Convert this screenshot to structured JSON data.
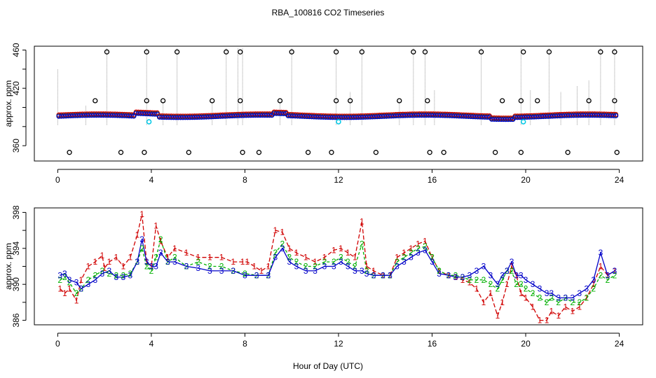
{
  "chart_data": {
    "title": "RBA_100816  CO2 Timeseries",
    "xlabel": "Hour of Day (UTC)",
    "colors": {
      "black": "#000000",
      "red": "#d00000",
      "green": "#00b000",
      "blue": "#0000c8",
      "cyan": "#00c8e6",
      "gray": "#9a9a9a"
    },
    "panels": [
      {
        "type": "scatter",
        "ylabel": "approx. ppm",
        "xlim": [
          -1,
          25
        ],
        "ylim": [
          344,
          464
        ],
        "xticks": [
          0,
          4,
          8,
          12,
          16,
          20,
          24
        ],
        "yticks": [
          360,
          380,
          400,
          420,
          440,
          460
        ],
        "ytick_labels": [
          "360",
          "",
          "",
          "420",
          "",
          "460"
        ],
        "outliers_high": [
          2.1,
          3.8,
          5.1,
          7.2,
          7.8,
          10.0,
          11.9,
          13.0,
          15.2,
          15.7,
          18.1,
          19.9,
          21.0,
          23.2,
          23.8
        ],
        "outliers_mid": [
          1.6,
          3.8,
          4.5,
          6.6,
          7.8,
          9.5,
          11.9,
          12.5,
          14.6,
          15.8,
          19.0,
          19.8,
          20.5,
          22.7,
          23.8
        ],
        "outliers_low": [
          0.5,
          2.7,
          3.7,
          5.6,
          7.9,
          8.6,
          10.7,
          11.7,
          13.6,
          15.9,
          16.5,
          18.7,
          19.8,
          21.8,
          23.9
        ],
        "cyan_points": [
          [
            3.9,
            385
          ],
          [
            12.0,
            385
          ],
          [
            19.9,
            385
          ]
        ],
        "sticks": [
          [
            0.0,
            440
          ],
          [
            1.2,
            402
          ],
          [
            2.1,
            462
          ],
          [
            3.8,
            462
          ],
          [
            4.5,
            406
          ],
          [
            5.1,
            462
          ],
          [
            6.6,
            406
          ],
          [
            7.2,
            462
          ],
          [
            7.7,
            462
          ],
          [
            7.9,
            462
          ],
          [
            9.5,
            406
          ],
          [
            10.0,
            462
          ],
          [
            11.9,
            462
          ],
          [
            12.5,
            416
          ],
          [
            13.0,
            462
          ],
          [
            14.6,
            406
          ],
          [
            15.2,
            462
          ],
          [
            15.7,
            462
          ],
          [
            16.1,
            418
          ],
          [
            18.1,
            462
          ],
          [
            19.8,
            462
          ],
          [
            20.2,
            418
          ],
          [
            21.0,
            462
          ],
          [
            21.5,
            416
          ],
          [
            22.2,
            422
          ],
          [
            22.7,
            428
          ],
          [
            23.2,
            462
          ],
          [
            23.8,
            462
          ]
        ]
      },
      {
        "type": "line",
        "ylabel": "approx. ppm",
        "xlim": [
          -1,
          25
        ],
        "ylim": [
          385.5,
          398.5
        ],
        "xticks": [
          0,
          4,
          8,
          12,
          16,
          20,
          24
        ],
        "yticks": [
          386,
          388,
          390,
          392,
          394,
          396,
          398
        ],
        "ytick_labels": [
          "386",
          "",
          "390",
          "",
          "394",
          "",
          "398"
        ],
        "series": [
          {
            "name": "1",
            "color": "red",
            "x": [
              0.1,
              0.3,
              0.5,
              0.8,
              1.0,
              1.3,
              1.6,
              1.9,
              2.0,
              2.2,
              2.5,
              2.8,
              3.1,
              3.4,
              3.6,
              3.8,
              4.0,
              4.2,
              4.4,
              4.7,
              5.0,
              5.5,
              6.0,
              6.5,
              7.0,
              7.5,
              7.9,
              8.1,
              8.4,
              8.7,
              9.0,
              9.3,
              9.6,
              9.9,
              10.2,
              10.6,
              11.0,
              11.4,
              11.8,
              12.1,
              12.4,
              12.7,
              13.0,
              13.2,
              13.5,
              13.9,
              14.2,
              14.5,
              14.8,
              15.1,
              15.4,
              15.7,
              16.0,
              16.3,
              16.7,
              17.0,
              17.3,
              17.6,
              17.9,
              18.2,
              18.5,
              18.8,
              19.0,
              19.2,
              19.4,
              19.6,
              19.8,
              20.0,
              20.3,
              20.6,
              20.9,
              21.1,
              21.4,
              21.7,
              22.0,
              22.3,
              22.6,
              22.9,
              23.2,
              23.5,
              23.8
            ],
            "y": [
              389.5,
              389.0,
              389.5,
              388.2,
              390.5,
              392.0,
              392.5,
              393.2,
              391.8,
              392.5,
              393.0,
              392.0,
              393.0,
              395.5,
              397.8,
              392.5,
              392.0,
              396.5,
              394.8,
              393.0,
              394.0,
              393.5,
              393.0,
              393.0,
              393.0,
              392.5,
              392.5,
              392.5,
              392.0,
              391.5,
              392.0,
              396.0,
              395.8,
              394.0,
              393.5,
              393.0,
              392.5,
              393.0,
              393.8,
              394.0,
              393.5,
              393.0,
              397.0,
              392.0,
              391.5,
              391.0,
              391.0,
              393.0,
              393.5,
              394.0,
              394.5,
              394.8,
              393.0,
              391.5,
              391.0,
              390.8,
              390.5,
              390.2,
              389.5,
              388.0,
              389.0,
              386.5,
              388.0,
              390.0,
              392.0,
              391.0,
              389.0,
              388.5,
              387.5,
              386.0,
              386.0,
              387.0,
              386.5,
              387.5,
              387.0,
              387.5,
              388.5,
              390.0,
              392.0,
              391.0,
              391.5
            ]
          },
          {
            "name": "2",
            "color": "green",
            "x": [
              0.1,
              0.3,
              0.5,
              0.8,
              1.0,
              1.3,
              1.6,
              1.9,
              2.2,
              2.5,
              2.8,
              3.1,
              3.4,
              3.6,
              3.8,
              4.0,
              4.2,
              4.4,
              4.7,
              5.0,
              5.5,
              6.0,
              6.5,
              7.0,
              7.5,
              8.0,
              8.5,
              9.0,
              9.3,
              9.6,
              9.9,
              10.2,
              10.6,
              11.0,
              11.4,
              11.8,
              12.1,
              12.4,
              12.7,
              13.0,
              13.2,
              13.5,
              13.9,
              14.2,
              14.5,
              14.8,
              15.1,
              15.4,
              15.7,
              16.0,
              16.3,
              16.7,
              17.0,
              17.3,
              17.6,
              17.9,
              18.2,
              18.5,
              18.8,
              19.0,
              19.2,
              19.4,
              19.6,
              19.8,
              20.0,
              20.3,
              20.6,
              20.9,
              21.1,
              21.4,
              21.7,
              22.0,
              22.3,
              22.6,
              22.9,
              23.2,
              23.5,
              23.8
            ],
            "y": [
              390.5,
              390.8,
              390.2,
              389.0,
              389.5,
              390.5,
              391.0,
              391.5,
              391.2,
              391.0,
              391.0,
              391.2,
              392.5,
              394.0,
              392.0,
              391.5,
              393.0,
              395.0,
              392.5,
              393.0,
              392.0,
              392.5,
              392.0,
              392.0,
              391.5,
              391.2,
              391.0,
              391.0,
              393.5,
              394.5,
              393.0,
              392.5,
              392.0,
              392.0,
              392.5,
              392.5,
              393.0,
              392.5,
              392.0,
              394.5,
              391.5,
              391.0,
              391.0,
              391.0,
              392.5,
              393.0,
              393.5,
              394.0,
              394.2,
              393.0,
              391.5,
              391.0,
              391.0,
              390.8,
              390.5,
              390.5,
              390.5,
              390.0,
              389.5,
              390.5,
              391.5,
              391.5,
              390.0,
              390.0,
              389.5,
              389.0,
              388.5,
              388.0,
              388.5,
              388.0,
              388.5,
              388.0,
              388.0,
              388.5,
              389.5,
              391.0,
              390.5,
              391.0
            ]
          },
          {
            "name": "3",
            "color": "blue",
            "x": [
              0.1,
              0.3,
              0.5,
              0.8,
              1.0,
              1.3,
              1.6,
              1.9,
              2.2,
              2.5,
              2.8,
              3.1,
              3.4,
              3.6,
              3.8,
              4.0,
              4.2,
              4.4,
              4.7,
              5.0,
              5.5,
              6.0,
              6.5,
              7.0,
              7.5,
              8.0,
              8.5,
              9.0,
              9.3,
              9.6,
              9.9,
              10.2,
              10.6,
              11.0,
              11.4,
              11.8,
              12.1,
              12.4,
              12.7,
              13.0,
              13.2,
              13.5,
              13.9,
              14.2,
              14.5,
              14.8,
              15.1,
              15.4,
              15.7,
              16.0,
              16.3,
              16.7,
              17.0,
              17.3,
              17.6,
              17.9,
              18.2,
              18.5,
              18.8,
              19.0,
              19.2,
              19.4,
              19.6,
              19.8,
              20.0,
              20.3,
              20.6,
              20.9,
              21.1,
              21.4,
              21.7,
              22.0,
              22.3,
              22.6,
              22.9,
              23.2,
              23.5,
              23.8
            ],
            "y": [
              391.0,
              391.2,
              390.5,
              390.2,
              389.5,
              390.0,
              390.5,
              391.2,
              391.5,
              390.8,
              390.8,
              391.0,
              392.5,
              395.0,
              392.5,
              392.0,
              392.0,
              393.5,
              392.5,
              392.5,
              392.0,
              391.8,
              391.5,
              391.5,
              391.5,
              391.0,
              391.0,
              391.0,
              393.0,
              394.0,
              392.5,
              392.0,
              391.5,
              391.5,
              392.0,
              392.0,
              392.5,
              392.0,
              391.5,
              391.5,
              391.2,
              391.0,
              391.0,
              391.0,
              392.0,
              392.5,
              393.0,
              393.5,
              393.8,
              392.5,
              391.2,
              391.0,
              390.8,
              390.8,
              391.0,
              391.5,
              392.0,
              391.0,
              390.0,
              391.0,
              391.5,
              392.5,
              391.0,
              391.0,
              390.5,
              390.0,
              389.5,
              389.0,
              389.0,
              388.5,
              388.5,
              388.5,
              389.0,
              389.5,
              390.5,
              393.5,
              391.0,
              391.5
            ]
          }
        ]
      }
    ]
  }
}
